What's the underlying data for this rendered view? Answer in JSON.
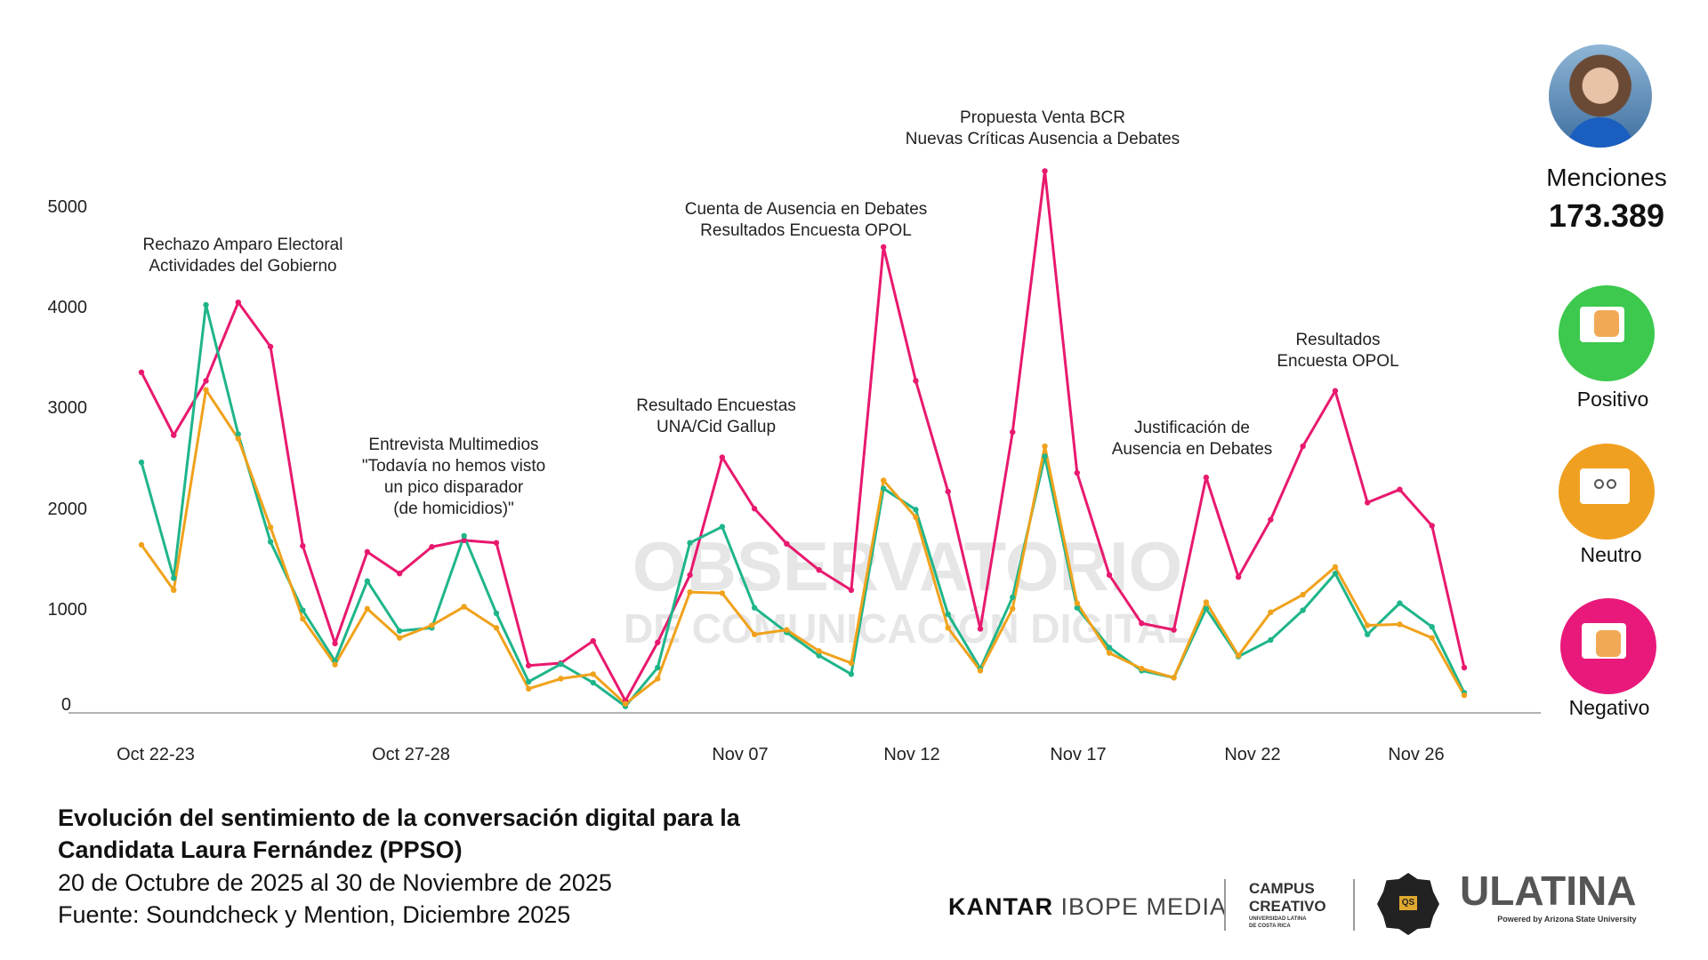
{
  "chart_data": {
    "type": "line",
    "title": "Evolución del sentimiento de la conversación digital para la Candidata Laura Fernández (PPSO)",
    "subtitle": "20 de Octubre de 2025 al 30 de Noviembre de 2025",
    "source": "Fuente: Soundcheck y Mention, Diciembre 2025",
    "ylim": [
      0,
      5000
    ],
    "y_ticks": [
      "0",
      "1000",
      "2000",
      "3000",
      "4000",
      "5000"
    ],
    "x_tick_labels": [
      "Oct 22-23",
      "Oct 27-28",
      "Nov 07",
      "Nov 12",
      "Nov 17",
      "Nov 22",
      "Nov 26"
    ],
    "grid": false,
    "series": [
      {
        "name": "Negativo",
        "color": "#e8196e",
        "values": [
          3385,
          2760,
          3300,
          4080,
          3640,
          1660,
          690,
          1600,
          1385,
          1650,
          1715,
          1690,
          470,
          495,
          715,
          120,
          700,
          1370,
          2540,
          2030,
          1680,
          1420,
          1220,
          4630,
          3300,
          2200,
          835,
          2790,
          5385,
          2385,
          1370,
          890,
          825,
          2340,
          1350,
          1920,
          2650,
          3200,
          2090,
          2220,
          1860,
          450
        ]
      },
      {
        "name": "Positivo",
        "color": "#1fb58a",
        "values": [
          2490,
          1340,
          4055,
          2770,
          1700,
          1020,
          515,
          1310,
          815,
          845,
          1760,
          990,
          310,
          485,
          300,
          65,
          450,
          1690,
          1850,
          1045,
          800,
          570,
          385,
          2230,
          2020,
          980,
          440,
          1150,
          2550,
          1045,
          650,
          420,
          350,
          1035,
          560,
          725,
          1020,
          1385,
          780,
          1090,
          855,
          200
        ]
      },
      {
        "name": "Neutro",
        "color": "#f0a21c",
        "values": [
          1670,
          1220,
          3210,
          2725,
          1845,
          935,
          480,
          1035,
          745,
          870,
          1055,
          845,
          240,
          340,
          385,
          90,
          340,
          1200,
          1190,
          780,
          825,
          615,
          495,
          2310,
          1945,
          845,
          420,
          1035,
          2650,
          1090,
          595,
          440,
          350,
          1100,
          570,
          1000,
          1175,
          1450,
          870,
          880,
          745,
          175
        ]
      }
    ],
    "annotations": [
      {
        "lines": [
          "Rechazo Amparo Electoral",
          "Actividades del Gobierno"
        ]
      },
      {
        "lines": [
          "Entrevista Multimedios",
          "\"Todavía no hemos visto",
          "un pico disparador",
          "(de homicidios)\""
        ]
      },
      {
        "lines": [
          "Resultado Encuestas",
          "UNA/Cid Gallup"
        ]
      },
      {
        "lines": [
          "Cuenta de Ausencia en Debates",
          "Resultados Encuesta OPOL"
        ]
      },
      {
        "lines": [
          "Propuesta Venta BCR",
          "Nuevas Críticas Ausencia a Debates"
        ]
      },
      {
        "lines": [
          "Justificación de",
          "Ausencia en Debates"
        ]
      },
      {
        "lines": [
          "Resultados",
          "Encuesta OPOL"
        ]
      }
    ]
  },
  "watermark": {
    "line1": "OBSERVATORIO",
    "line2": "DE COMUNICACIÓN DIGITAL"
  },
  "panel": {
    "mentions_label": "Menciones",
    "mentions_value": "173.389",
    "positive_label": "Positivo",
    "neutral_label": "Neutro",
    "negative_label": "Negativo",
    "positive_color": "#3cc94e",
    "neutral_color": "#f0a020",
    "negative_color": "#e8197a"
  },
  "logos": {
    "kantar": "KANTAR",
    "ibope": "IBOPE MEDIA",
    "campus1": "CAMPUS",
    "campus2": "CREATIVO",
    "campus3": "UNIVERSIDAD LATINA DE COSTA RICA",
    "badge": "QS",
    "ulatina": "ULATINA",
    "ulatina_sub": "Powered by Arizona State University"
  }
}
